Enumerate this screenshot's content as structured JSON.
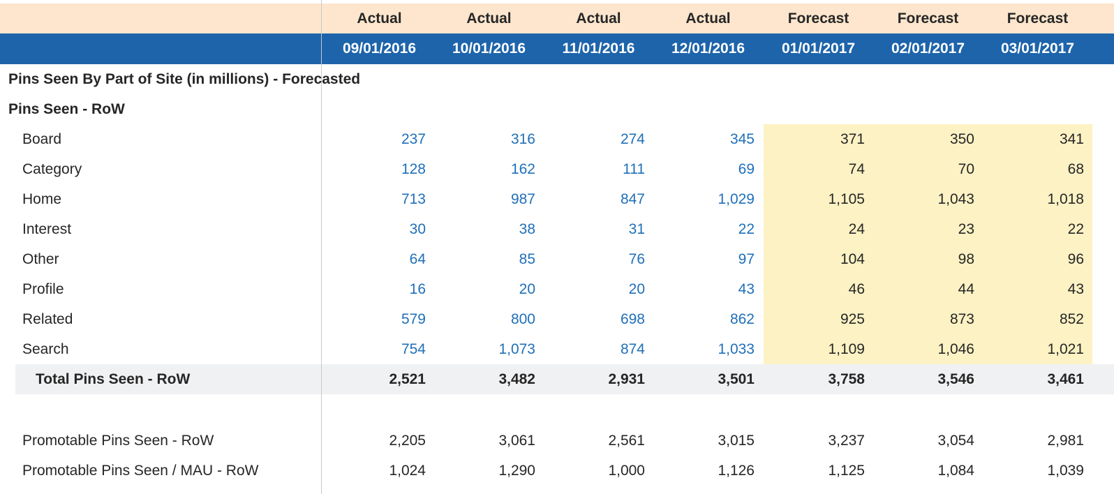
{
  "header": {
    "types": [
      "Actual",
      "Actual",
      "Actual",
      "Actual",
      "Forecast",
      "Forecast",
      "Forecast"
    ],
    "dates": [
      "09/01/2016",
      "10/01/2016",
      "11/01/2016",
      "12/01/2016",
      "01/01/2017",
      "02/01/2017",
      "03/01/2017"
    ]
  },
  "report_title": "Pins Seen By Part of Site (in millions) - Forecasted",
  "section_title": "Pins Seen - RoW",
  "rows": [
    {
      "label": "Board",
      "values": [
        "237",
        "316",
        "274",
        "345",
        "371",
        "350",
        "341"
      ]
    },
    {
      "label": "Category",
      "values": [
        "128",
        "162",
        "111",
        "69",
        "74",
        "70",
        "68"
      ]
    },
    {
      "label": "Home",
      "values": [
        "713",
        "987",
        "847",
        "1,029",
        "1,105",
        "1,043",
        "1,018"
      ]
    },
    {
      "label": "Interest",
      "values": [
        "30",
        "38",
        "31",
        "22",
        "24",
        "23",
        "22"
      ]
    },
    {
      "label": "Other",
      "values": [
        "64",
        "85",
        "76",
        "97",
        "104",
        "98",
        "96"
      ]
    },
    {
      "label": "Profile",
      "values": [
        "16",
        "20",
        "20",
        "43",
        "46",
        "44",
        "43"
      ]
    },
    {
      "label": "Related",
      "values": [
        "579",
        "800",
        "698",
        "862",
        "925",
        "873",
        "852"
      ]
    },
    {
      "label": "Search",
      "values": [
        "754",
        "1,073",
        "874",
        "1,033",
        "1,109",
        "1,046",
        "1,021"
      ]
    }
  ],
  "total": {
    "label": "Total Pins Seen - RoW",
    "values": [
      "2,521",
      "3,482",
      "2,931",
      "3,501",
      "3,758",
      "3,546",
      "3,461"
    ]
  },
  "extra_rows": [
    {
      "label": "Promotable Pins Seen - RoW",
      "values": [
        "2,205",
        "3,061",
        "2,561",
        "3,015",
        "3,237",
        "3,054",
        "2,981"
      ]
    },
    {
      "label": "Promotable Pins Seen / MAU - RoW",
      "values": [
        "1,024",
        "1,290",
        "1,000",
        "1,126",
        "1,125",
        "1,084",
        "1,039"
      ]
    }
  ],
  "colors": {
    "header_top_bg": "#fde6cd",
    "header_date_bg": "#1d64ab",
    "actual_value_text": "#1f6fb8",
    "forecast_cell_bg": "#fdf2c4",
    "total_row_bg": "#f0f1f3"
  }
}
